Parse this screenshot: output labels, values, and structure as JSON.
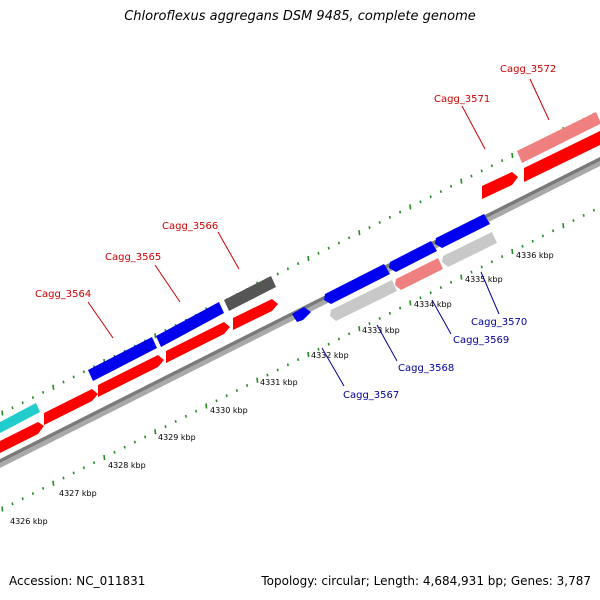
{
  "title": "Chloroflexus aggregans DSM 9485, complete genome",
  "footer": {
    "accession": "Accession: NC_011831",
    "summary": "Topology: circular; Length: 4,684,931 bp; Genes: 3,787"
  },
  "colors": {
    "forward": "#ff0000",
    "forward_light": "#f08080",
    "reverse": "#0000ee",
    "reverse_light": "#c8c8c8",
    "dark_gene": "#555555",
    "cyan_gene": "#22cccc",
    "axis": "#808080",
    "tick": "#228b22",
    "label_forward": "#cc0000",
    "label_reverse": "#000099"
  },
  "scale_labels": [
    "4326 kbp",
    "4327 kbp",
    "4328 kbp",
    "4329 kbp",
    "4330 kbp",
    "4331 kbp",
    "4332 kbp",
    "4333 kbp",
    "4334 kbp",
    "4335 kbp",
    "4336 kbp"
  ],
  "gene_labels": {
    "Cagg_3564": "Cagg_3564",
    "Cagg_3565": "Cagg_3565",
    "Cagg_3566": "Cagg_3566",
    "Cagg_3567": "Cagg_3567",
    "Cagg_3568": "Cagg_3568",
    "Cagg_3569": "Cagg_3569",
    "Cagg_3570": "Cagg_3570",
    "Cagg_3571": "Cagg_3571",
    "Cagg_3572": "Cagg_3572"
  }
}
